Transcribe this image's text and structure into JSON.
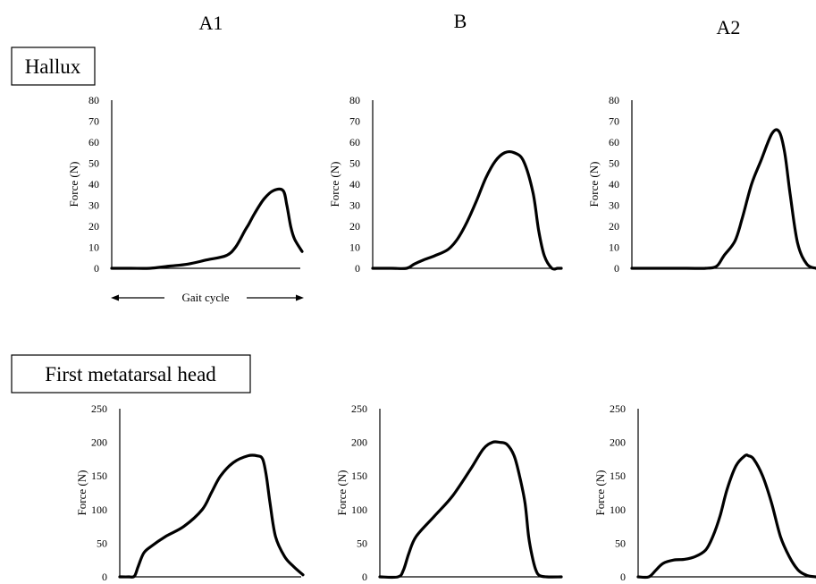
{
  "columns": [
    "A1",
    "B",
    "A2"
  ],
  "rows": [
    {
      "label": "Hallux"
    },
    {
      "label": "First metatarsal head"
    }
  ],
  "gait_cycle_label": "Gait cycle",
  "chart_data": [
    {
      "type": "line",
      "row": "Hallux",
      "column": "A1",
      "ylabel": "Force (N)",
      "ylim": [
        0,
        80
      ],
      "yticks": [
        0,
        10,
        20,
        30,
        40,
        50,
        60,
        70,
        80
      ],
      "x": [
        0,
        10,
        20,
        30,
        40,
        50,
        60,
        65,
        70,
        72,
        75,
        80,
        85,
        90,
        92,
        94,
        96,
        100
      ],
      "y": [
        0,
        0,
        0,
        1,
        2,
        4,
        6,
        10,
        18,
        21,
        26,
        33,
        37,
        37,
        30,
        20,
        14,
        8
      ]
    },
    {
      "type": "line",
      "row": "Hallux",
      "column": "B",
      "ylabel": "Force (N)",
      "ylim": [
        0,
        80
      ],
      "yticks": [
        0,
        10,
        20,
        30,
        40,
        50,
        60,
        70,
        80
      ],
      "x": [
        0,
        10,
        18,
        22,
        27,
        33,
        40,
        45,
        50,
        55,
        60,
        65,
        70,
        75,
        80,
        85,
        88,
        91,
        95,
        98,
        100
      ],
      "y": [
        0,
        0,
        0,
        2,
        4,
        6,
        9,
        14,
        22,
        32,
        43,
        51,
        55,
        55,
        51,
        36,
        18,
        6,
        0,
        0,
        0
      ],
      "x_norm": [
        0,
        10,
        18,
        22,
        27,
        33,
        40,
        45,
        50,
        55,
        60,
        65,
        70,
        75,
        80,
        85,
        88,
        91,
        95,
        98,
        100
      ]
    },
    {
      "type": "line",
      "row": "Hallux",
      "column": "A2",
      "ylabel": "Force (N)",
      "ylim": [
        0,
        80
      ],
      "yticks": [
        0,
        10,
        20,
        30,
        40,
        50,
        60,
        70,
        80
      ],
      "x": [
        0,
        15,
        30,
        40,
        46,
        50,
        56,
        60,
        65,
        70,
        76,
        80,
        83,
        86,
        90,
        95,
        100
      ],
      "y": [
        0,
        0,
        0,
        0,
        1,
        6,
        13,
        24,
        40,
        51,
        64,
        65,
        55,
        35,
        12,
        2,
        0
      ]
    },
    {
      "type": "line",
      "row": "First metatarsal head",
      "column": "A1",
      "ylabel": "Force (N)",
      "ylim": [
        0,
        250
      ],
      "yticks": [
        0,
        50,
        100,
        150,
        200,
        250
      ],
      "x": [
        0,
        5,
        8,
        10,
        13,
        17,
        25,
        35,
        45,
        50,
        55,
        62,
        70,
        75,
        78,
        80,
        82,
        85,
        90,
        95,
        100
      ],
      "y": [
        0,
        0,
        1,
        15,
        35,
        45,
        60,
        75,
        100,
        125,
        150,
        170,
        180,
        180,
        175,
        150,
        110,
        60,
        30,
        15,
        3
      ]
    },
    {
      "type": "line",
      "row": "First metatarsal head",
      "column": "B",
      "ylabel": "Force (N)",
      "ylim": [
        0,
        250
      ],
      "yticks": [
        0,
        50,
        100,
        150,
        200,
        250
      ],
      "x": [
        0,
        10,
        13,
        16,
        20,
        30,
        40,
        50,
        57,
        62,
        66,
        70,
        74,
        77,
        80,
        82,
        84,
        86,
        88,
        92,
        100
      ],
      "y": [
        0,
        0,
        10,
        35,
        60,
        90,
        120,
        160,
        190,
        200,
        200,
        197,
        180,
        150,
        110,
        60,
        30,
        10,
        2,
        0,
        0
      ]
    },
    {
      "type": "line",
      "row": "First metatarsal head",
      "column": "A2",
      "ylabel": "Force (N)",
      "ylim": [
        0,
        250
      ],
      "yticks": [
        0,
        50,
        100,
        150,
        200,
        250
      ],
      "x": [
        0,
        6,
        10,
        14,
        20,
        26,
        32,
        38,
        42,
        46,
        50,
        55,
        60,
        62,
        65,
        70,
        75,
        80,
        85,
        90,
        95,
        100
      ],
      "y": [
        0,
        0,
        10,
        20,
        25,
        26,
        30,
        40,
        60,
        90,
        130,
        165,
        180,
        180,
        175,
        150,
        110,
        60,
        30,
        10,
        2,
        0
      ]
    }
  ]
}
